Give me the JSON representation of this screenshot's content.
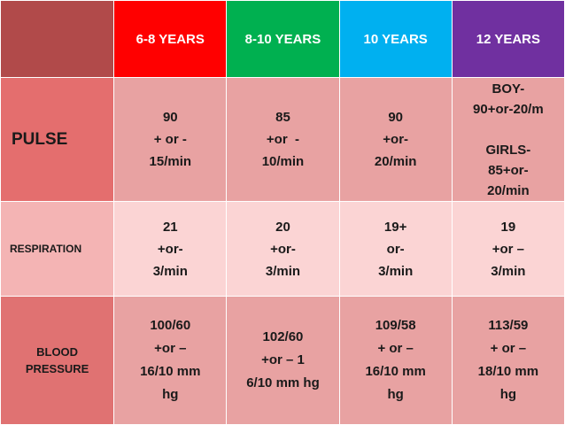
{
  "headers": [
    "6-8 YEARS",
    "8-10 YEARS",
    "10 YEARS",
    "12 YEARS"
  ],
  "colors": {
    "corner": "#b14a4a",
    "header_6_8": "#ff0000",
    "header_8_10": "#00b050",
    "header_10": "#00b0f0",
    "header_12": "#7030a0"
  },
  "rows": [
    {
      "label": [
        "PULSE"
      ],
      "cells": [
        [
          "90",
          "+ or -",
          "15/min"
        ],
        [
          "85",
          "+or  -",
          "10/min"
        ],
        [
          "90",
          "+or-",
          "20/min"
        ],
        [
          "BOY-",
          "90+or-20/m",
          "",
          "GIRLS-",
          "85+or-",
          "20/min"
        ]
      ]
    },
    {
      "label": [
        "RESPIRATION"
      ],
      "cells": [
        [
          "21",
          "+or-",
          "3/min"
        ],
        [
          "20",
          "+or-",
          "3/min"
        ],
        [
          "19+",
          "or-",
          "3/min"
        ],
        [
          "19",
          "+or –",
          "3/min"
        ]
      ]
    },
    {
      "label": [
        "BLOOD",
        "PRESSURE"
      ],
      "cells": [
        [
          "100/60",
          "+or –",
          "16/10 mm",
          "hg"
        ],
        [
          "102/60",
          "+or – 1",
          "6/10 mm hg"
        ],
        [
          "109/58",
          "+ or –",
          "16/10 mm",
          "hg"
        ],
        [
          "113/59",
          "+ or –",
          "18/10 mm",
          "hg"
        ]
      ]
    }
  ]
}
